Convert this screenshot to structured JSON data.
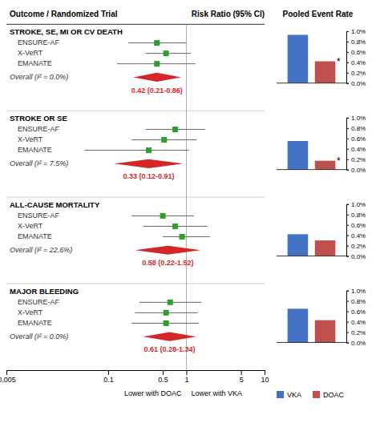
{
  "chart_data": [
    {
      "type": "forest",
      "column_titles": [
        "Outcome / Randomized Trial",
        "Risk Ratio (95% CI)"
      ],
      "log": "x",
      "xlim": [
        0.005,
        10
      ],
      "xticks": [
        0.005,
        0.1,
        0.5,
        1,
        5,
        10
      ],
      "xlabel_left": "Lower with DOAC",
      "xlabel_right": "Lower with VKA",
      "reference_line": 1,
      "sections": [
        {
          "heading": "STROKE, SE, MI OR CV DEATH",
          "trials": [
            "ENSURE-AF",
            "X-VeRT",
            "EMANATE"
          ],
          "values": [
            0.42,
            0.55,
            0.42
          ],
          "ci_low": [
            0.18,
            0.3,
            0.13
          ],
          "ci_high": [
            1.0,
            1.15,
            1.3
          ],
          "overall_label": "Overall (I² = 0.0%)",
          "overall": 0.42,
          "overall_low": 0.21,
          "overall_high": 0.86,
          "overall_text": "0.42 (0.21-0.86)"
        },
        {
          "heading": "STROKE OR SE",
          "trials": [
            "ENSURE-AF",
            "X-VeRT",
            "EMANATE"
          ],
          "values": [
            0.72,
            0.52,
            0.33
          ],
          "ci_low": [
            0.3,
            0.2,
            0.05
          ],
          "ci_high": [
            1.75,
            1.35,
            1.08
          ],
          "overall_label": "Overall (I² = 7.5%)",
          "overall": 0.33,
          "overall_low": 0.12,
          "overall_high": 0.91,
          "overall_text": "0.33 (0.12-0.91)"
        },
        {
          "heading": "ALL-CAUSE MORTALITY",
          "trials": [
            "ENSURE-AF",
            "X-VeRT",
            "EMANATE"
          ],
          "values": [
            0.5,
            0.72,
            0.88
          ],
          "ci_low": [
            0.2,
            0.28,
            0.5
          ],
          "ci_high": [
            1.25,
            1.85,
            2.0
          ],
          "overall_label": "Overall (I² = 22.6%)",
          "overall": 0.58,
          "overall_low": 0.22,
          "overall_high": 1.52,
          "overall_text": "0.58 (0.22-1.52)"
        },
        {
          "heading": "MAJOR BLEEDING",
          "trials": [
            "ENSURE-AF",
            "X-VeRT",
            "EMANATE"
          ],
          "values": [
            0.62,
            0.55,
            0.55
          ],
          "ci_low": [
            0.25,
            0.22,
            0.2
          ],
          "ci_high": [
            1.55,
            1.4,
            1.45
          ],
          "overall_label": "Overall (I² = 0.0%)",
          "overall": 0.61,
          "overall_low": 0.28,
          "overall_high": 1.34,
          "overall_text": "0.61 (0.28-1.34)"
        }
      ]
    },
    {
      "type": "bar",
      "title": "Pooled Event Rate",
      "categories": [
        null,
        null,
        null,
        null
      ],
      "series": [
        {
          "name": "VKA",
          "color": "#4472c4",
          "values": [
            0.93,
            0.55,
            0.42,
            0.65
          ]
        },
        {
          "name": "DOAC",
          "color": "#c0504d",
          "values": [
            0.42,
            0.17,
            0.3,
            0.43
          ],
          "annotations": [
            "*",
            "*",
            null,
            null
          ]
        }
      ],
      "ylim": [
        0,
        1
      ],
      "yticks": [
        {
          "value": 0,
          "label": "0.0%"
        },
        {
          "value": 0.2,
          "label": "0.2%"
        },
        {
          "value": 0.4,
          "label": "0.4%"
        },
        {
          "value": 0.6,
          "label": "0.6%"
        },
        {
          "value": 0.8,
          "label": "0.8%"
        },
        {
          "value": 1.0,
          "label": "1.0%"
        }
      ],
      "legend": "bottom"
    }
  ]
}
